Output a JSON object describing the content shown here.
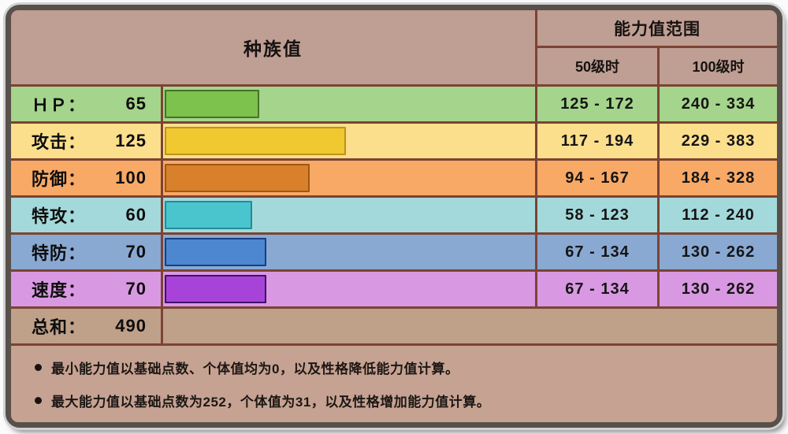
{
  "header": {
    "base_stats": "种族值",
    "range": "能力值范围",
    "lv50": "50级时",
    "lv100": "100级时"
  },
  "rows": [
    {
      "label": "ＨＰ：",
      "value": 65,
      "lv50": "125 - 172",
      "lv100": "240 - 334",
      "colors": {
        "bg": "#a5d48c",
        "bar": "#7dc24c",
        "bar_border": "#45722a"
      }
    },
    {
      "label": "攻击：",
      "value": 125,
      "lv50": "117 - 194",
      "lv100": "229 - 383",
      "colors": {
        "bg": "#fbdf8d",
        "bar": "#f0c82f",
        "bar_border": "#bd931c"
      }
    },
    {
      "label": "防御：",
      "value": 100,
      "lv50": "94 - 167",
      "lv100": "184 - 328",
      "colors": {
        "bg": "#f8a966",
        "bar": "#d8802c",
        "bar_border": "#a05813"
      }
    },
    {
      "label": "特攻：",
      "value": 60,
      "lv50": "58 - 123",
      "lv100": "112 - 240",
      "colors": {
        "bg": "#a4d9db",
        "bar": "#4ac5ce",
        "bar_border": "#1f8d9b"
      }
    },
    {
      "label": "特防：",
      "value": 70,
      "lv50": "67 - 134",
      "lv100": "130 - 262",
      "colors": {
        "bg": "#89a9d2",
        "bar": "#4c87cf",
        "bar_border": "#173f85"
      }
    },
    {
      "label": "速度：",
      "value": 70,
      "lv50": "67 - 134",
      "lv100": "130 - 262",
      "colors": {
        "bg": "#d999e2",
        "bar": "#a843da",
        "bar_border": "#3d1168"
      }
    }
  ],
  "total": {
    "label": "总和：",
    "value": 490,
    "bg": "#bfa089"
  },
  "notes": [
    "最小能力值以基础点数、个体值均为0，以及性格降低能力值计算。",
    "最大能力值以基础点数为252，个体值为31，以及性格增加能力值计算。"
  ],
  "palette": {
    "frame_border": "#58504a",
    "grid_line": "#7c4334",
    "header_bg": "#bf9e93",
    "notes_bg": "#c6a292"
  },
  "chart_data": {
    "type": "bar",
    "title": "种族值",
    "categories": [
      "ＨＰ",
      "攻击",
      "防御",
      "特攻",
      "特防",
      "速度"
    ],
    "values": [
      65,
      125,
      100,
      60,
      70,
      70
    ],
    "total": 490,
    "bar_scale_max": 255,
    "orientation": "horizontal",
    "series": [
      {
        "name": "50级时",
        "ranges": [
          [
            125,
            172
          ],
          [
            117,
            194
          ],
          [
            94,
            167
          ],
          [
            58,
            123
          ],
          [
            67,
            134
          ],
          [
            67,
            134
          ]
        ]
      },
      {
        "name": "100级时",
        "ranges": [
          [
            240,
            334
          ],
          [
            229,
            383
          ],
          [
            184,
            328
          ],
          [
            112,
            240
          ],
          [
            130,
            262
          ],
          [
            130,
            262
          ]
        ]
      }
    ]
  }
}
